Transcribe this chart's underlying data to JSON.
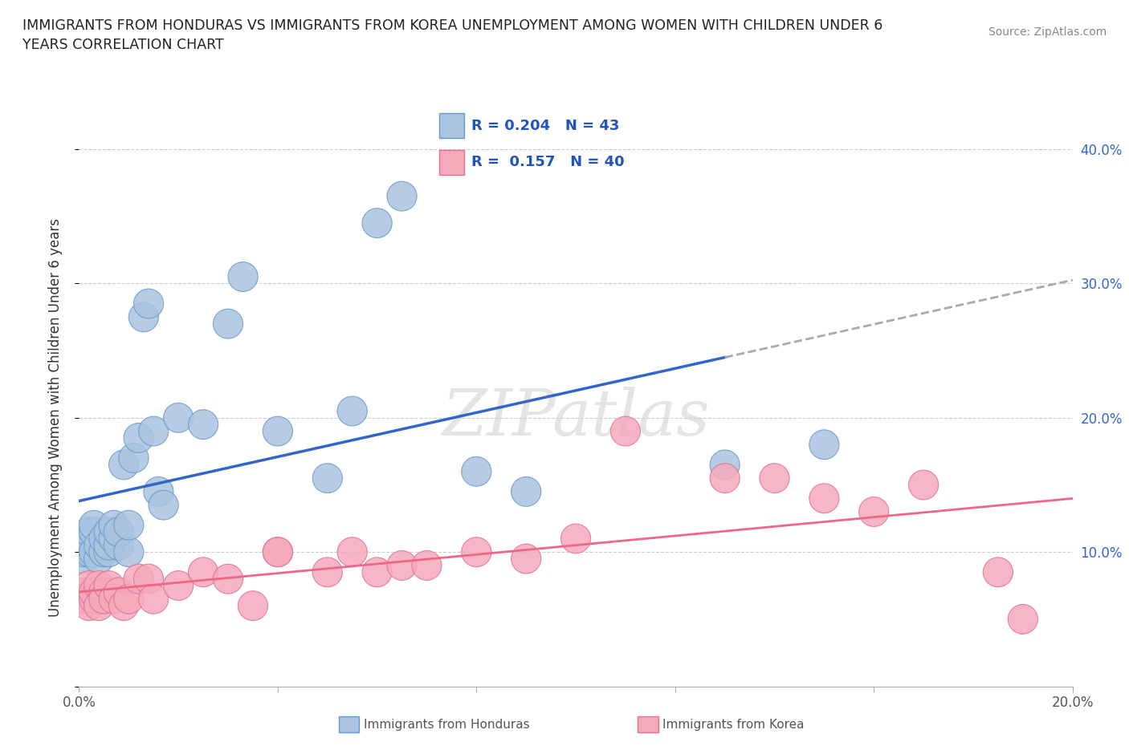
{
  "title": "IMMIGRANTS FROM HONDURAS VS IMMIGRANTS FROM KOREA UNEMPLOYMENT AMONG WOMEN WITH CHILDREN UNDER 6\nYEARS CORRELATION CHART",
  "source": "Source: ZipAtlas.com",
  "ylabel": "Unemployment Among Women with Children Under 6 years",
  "x_min": 0.0,
  "x_max": 0.2,
  "y_min": 0.0,
  "y_max": 0.4,
  "x_ticks": [
    0.0,
    0.04,
    0.08,
    0.12,
    0.16,
    0.2
  ],
  "y_ticks": [
    0.0,
    0.1,
    0.2,
    0.3,
    0.4
  ],
  "x_tick_labels": [
    "0.0%",
    "",
    "",
    "",
    "",
    "20.0%"
  ],
  "y_tick_labels": [
    "",
    "10.0%",
    "20.0%",
    "30.0%",
    "40.0%"
  ],
  "color_honduras": "#aac4e0",
  "color_honduras_edge": "#6699cc",
  "color_korea": "#f5aabb",
  "color_korea_edge": "#e07090",
  "color_line_honduras": "#3366cc",
  "color_line_korea": "#ee6688",
  "color_line_dashed": "#aaaaaa",
  "watermark": "ZIPatlas",
  "honduras_x": [
    0.001,
    0.001,
    0.001,
    0.002,
    0.002,
    0.002,
    0.003,
    0.003,
    0.003,
    0.004,
    0.004,
    0.005,
    0.005,
    0.006,
    0.006,
    0.006,
    0.007,
    0.007,
    0.008,
    0.008,
    0.009,
    0.01,
    0.01,
    0.011,
    0.012,
    0.013,
    0.014,
    0.015,
    0.016,
    0.017,
    0.02,
    0.025,
    0.03,
    0.033,
    0.04,
    0.05,
    0.055,
    0.06,
    0.065,
    0.08,
    0.09,
    0.13,
    0.15
  ],
  "honduras_y": [
    0.095,
    0.1,
    0.105,
    0.1,
    0.11,
    0.115,
    0.1,
    0.115,
    0.12,
    0.095,
    0.105,
    0.1,
    0.11,
    0.1,
    0.105,
    0.115,
    0.11,
    0.12,
    0.105,
    0.115,
    0.165,
    0.1,
    0.12,
    0.17,
    0.185,
    0.275,
    0.285,
    0.19,
    0.145,
    0.135,
    0.2,
    0.195,
    0.27,
    0.305,
    0.19,
    0.155,
    0.205,
    0.345,
    0.365,
    0.16,
    0.145,
    0.165,
    0.18
  ],
  "korea_x": [
    0.001,
    0.001,
    0.002,
    0.002,
    0.003,
    0.003,
    0.004,
    0.004,
    0.005,
    0.005,
    0.006,
    0.007,
    0.008,
    0.009,
    0.01,
    0.012,
    0.014,
    0.015,
    0.02,
    0.025,
    0.03,
    0.035,
    0.04,
    0.04,
    0.05,
    0.055,
    0.06,
    0.065,
    0.07,
    0.08,
    0.09,
    0.1,
    0.11,
    0.13,
    0.14,
    0.15,
    0.16,
    0.17,
    0.185,
    0.19
  ],
  "korea_y": [
    0.07,
    0.065,
    0.06,
    0.075,
    0.065,
    0.07,
    0.075,
    0.06,
    0.07,
    0.065,
    0.075,
    0.065,
    0.07,
    0.06,
    0.065,
    0.08,
    0.08,
    0.065,
    0.075,
    0.085,
    0.08,
    0.06,
    0.1,
    0.1,
    0.085,
    0.1,
    0.085,
    0.09,
    0.09,
    0.1,
    0.095,
    0.11,
    0.19,
    0.155,
    0.155,
    0.14,
    0.13,
    0.15,
    0.085,
    0.05
  ],
  "legend_text1": "R = 0.204   N = 43",
  "legend_text2": "R =  0.157   N = 40",
  "bottom_legend1": "Immigrants from Honduras",
  "bottom_legend2": "Immigrants from Korea"
}
